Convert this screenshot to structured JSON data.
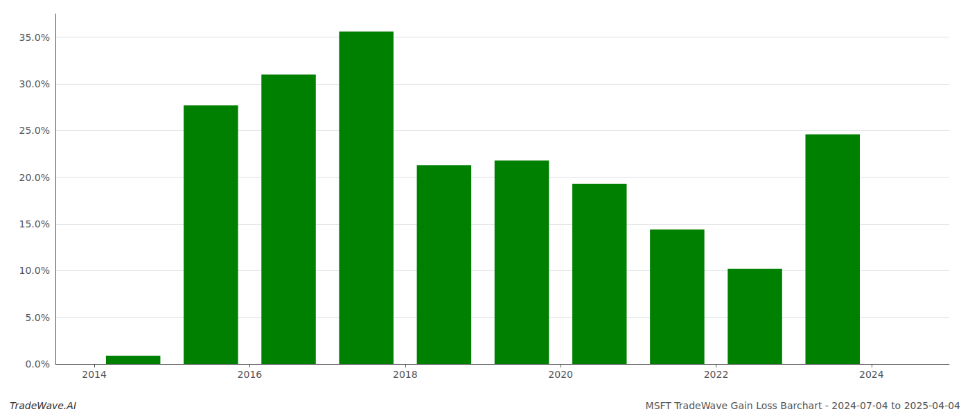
{
  "chart_data": {
    "type": "bar",
    "x": [
      2014.5,
      2015.5,
      2016.5,
      2017.5,
      2018.5,
      2019.5,
      2020.5,
      2021.5,
      2022.5,
      2023.5
    ],
    "values": [
      0.009,
      0.277,
      0.31,
      0.356,
      0.213,
      0.218,
      0.193,
      0.144,
      0.102,
      0.246
    ],
    "color": "#008000",
    "xlim": [
      2013.5,
      2025.0
    ],
    "xticks": [
      2014,
      2016,
      2018,
      2020,
      2022,
      2024
    ],
    "ylim": [
      0.0,
      0.375
    ],
    "yticks": [
      {
        "value": 0.0,
        "label": "0.0%"
      },
      {
        "value": 0.05,
        "label": "5.0%"
      },
      {
        "value": 0.1,
        "label": "10.0%"
      },
      {
        "value": 0.15,
        "label": "15.0%"
      },
      {
        "value": 0.2,
        "label": "20.0%"
      },
      {
        "value": 0.25,
        "label": "25.0%"
      },
      {
        "value": 0.3,
        "label": "30.0%"
      },
      {
        "value": 0.35,
        "label": "35.0%"
      }
    ],
    "grid": true,
    "annotations": [
      "TradeWave.AI",
      "MSFT TradeWave Gain Loss Barchart - 2024-07-04 to 2025-04-04"
    ]
  }
}
